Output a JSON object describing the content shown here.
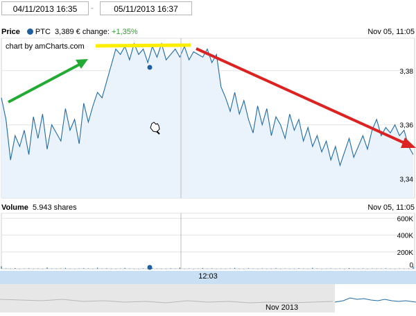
{
  "range": {
    "from": "04/11/2013 16:35",
    "separator": "-",
    "to": "05/11/2013 16:37"
  },
  "price_panel": {
    "title": "Price",
    "symbol": "PTC",
    "value_text": "3,389 €",
    "change_label": "change:",
    "change_value": "+1,35%",
    "timestamp": "Nov 05, 11:05",
    "credit": "chart by amCharts.com"
  },
  "volume_panel": {
    "title": "Volume",
    "value_text": "5.943 shares",
    "timestamp": "Nov 05, 11:05"
  },
  "cursor_time": "12:03",
  "scrollbar_label": "Nov 2013",
  "colors": {
    "line": "#1f6aa5",
    "fill": "#eaf3fb",
    "green_arrow": "#22aa33",
    "red_arrow": "#dd2222",
    "yellow_bar": "#ffee00",
    "cursor_bar": "#c9dff3"
  },
  "chart_data": [
    {
      "type": "area",
      "title": "Price",
      "y_ticks": [
        "3,38",
        "3,36",
        "3,34"
      ],
      "ylim": [
        3.333,
        3.392
      ],
      "series": [
        {
          "name": "PTC",
          "values": [
            3.37,
            3.362,
            3.347,
            3.356,
            3.352,
            3.358,
            3.349,
            3.363,
            3.355,
            3.364,
            3.351,
            3.36,
            3.357,
            3.354,
            3.366,
            3.358,
            3.362,
            3.353,
            3.368,
            3.361,
            3.367,
            3.372,
            3.37,
            3.376,
            3.382,
            3.388,
            3.386,
            3.389,
            3.384,
            3.39,
            3.386,
            3.388,
            3.383,
            3.389,
            3.385,
            3.39,
            3.384,
            3.386,
            3.388,
            3.385,
            3.389,
            3.384,
            3.387,
            3.386,
            3.385,
            3.388,
            3.383,
            3.386,
            3.374,
            3.37,
            3.365,
            3.372,
            3.364,
            3.369,
            3.362,
            3.357,
            3.367,
            3.36,
            3.366,
            3.356,
            3.363,
            3.36,
            3.355,
            3.364,
            3.358,
            3.362,
            3.354,
            3.359,
            3.352,
            3.356,
            3.35,
            3.354,
            3.347,
            3.352,
            3.345,
            3.35,
            3.355,
            3.348,
            3.352,
            3.356,
            3.351,
            3.358,
            3.362,
            3.356,
            3.359,
            3.357,
            3.36,
            3.356,
            3.358,
            3.352,
            3.349
          ]
        }
      ]
    },
    {
      "type": "bar",
      "title": "Volume",
      "y_ticks": [
        "600K",
        "400K",
        "200K",
        "0"
      ],
      "ylim": [
        0,
        660000
      ],
      "series": [
        {
          "name": "Volume",
          "values": [
            30000,
            4000,
            2000,
            8000,
            1000,
            3000,
            6000,
            2000,
            4000,
            1000,
            15000,
            3000,
            2000,
            5000,
            9000,
            2000,
            1000,
            3000,
            7000,
            4000,
            2000,
            12000,
            3000,
            6000,
            2000,
            1000,
            4000,
            10000,
            3000,
            2000,
            1000,
            5000,
            2000,
            7000,
            3000,
            1000,
            2000,
            6000,
            3000,
            14000,
            2000,
            4000,
            1000,
            3000,
            8000,
            2000,
            5000,
            1000,
            3000,
            2000,
            4000,
            9000,
            2000,
            1000,
            6000,
            3000,
            2000,
            5000,
            1000,
            3000,
            7000,
            2000,
            4000,
            1000,
            2000,
            6000,
            3000,
            2000,
            11000,
            4000,
            1000,
            3000,
            5000,
            2000,
            4000,
            1000,
            8000,
            3000,
            2000,
            5000,
            1000,
            4000,
            2000,
            3000,
            6000,
            2000,
            1000,
            4000,
            2000,
            3000,
            28000
          ]
        }
      ]
    }
  ]
}
